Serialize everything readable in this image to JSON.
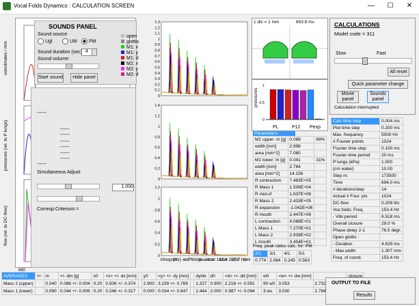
{
  "window": {
    "title": "Vocal Folds Dynamics : CALCULATION SCREEN",
    "minimize": "—",
    "maximize": "☐",
    "close": "✕"
  },
  "left_axes": {
    "ylabel1": "coordinates / mm",
    "ylabel2": "pressures (rel. to P lungs)",
    "ylabel3": "flow (rel. to DC-flow)",
    "tick_680": "680",
    "ticks_top": [
      "3",
      "2",
      "1",
      "0",
      "-1",
      "-2",
      "-3"
    ],
    "ticks_mid": [
      "0.5",
      "0"
    ],
    "ticks_bot": [
      "1",
      "0.5",
      "0"
    ]
  },
  "sounds_panel": {
    "title": "SOUNDS PANEL",
    "source_label": "Sound source",
    "opt_ugl": "Ugl",
    "opt_um": "UM",
    "opt_pm": "PM",
    "duration_label": "Sound duration (sec)",
    "duration_value": "4",
    "volume_label": "Sound volume:",
    "start_btn": "Start sound",
    "hide_btn": "Hide panel"
  },
  "overlay": {
    "dashes": [
      "------",
      "------",
      "------",
      "------",
      "------",
      "------",
      "------",
      "------"
    ],
    "sim_adjust": "Simultaneous Adjust",
    "value": "1.000",
    "corresp": "Corresp.Criterium ="
  },
  "legend": {
    "items": [
      "open",
      "glottis",
      "M1: x",
      "M1: y",
      "M1: d",
      "M2: x",
      "M2: y",
      "M2: d"
    ],
    "colors": [
      "#bbbbbb",
      "#888888",
      "#22cc22",
      "#2222cc",
      "#cc2222",
      "#000000",
      "#ff22ff",
      "#cc2288"
    ]
  },
  "spectra": {
    "y1_ticks": [
      "1.3",
      "1.2",
      "1.1",
      "1",
      "0.9",
      "0.8",
      "0.7",
      "0.6",
      "0.5",
      "0.4",
      "0.3",
      "0.2",
      "0.1",
      "0"
    ],
    "y2_ticks": [
      "1.4",
      "1.2",
      "1",
      "0.8",
      "0.6",
      "0.4",
      "0.2",
      "0"
    ],
    "y3_ticks": [
      "1.2",
      "1",
      "0.8",
      "0.6",
      "0.4",
      "0.2",
      "0"
    ],
    "x_ticks": [
      "0",
      "200",
      "400",
      "600",
      "800",
      "1000",
      "1200",
      "1400"
    ],
    "footer": "freq. (Hz) --- PM : peaks at 142.4   287.7 Hz"
  },
  "glottis_view": {
    "scale": "1 div = 1 mm",
    "time": "693.8 ms"
  },
  "pressure_bars": {
    "title": "pressures",
    "labels": [
      "PL",
      "P12",
      "Pexp"
    ],
    "ticks": [
      "1",
      "0.5",
      "0"
    ],
    "values": [
      0.88,
      0.88,
      0.87,
      0.86,
      0.85,
      0.87,
      0.02
    ],
    "colors": [
      "#cc0000",
      "#2222cc",
      "#cc2222",
      "#8800cc",
      "#aa22aa",
      "#2288ff",
      "#777777"
    ]
  },
  "parameters": {
    "header": "Parameters:",
    "rows": [
      [
        "M2 upper: m [g]",
        "0.089",
        "69%"
      ],
      [
        "width [mm]",
        "2.998",
        ""
      ],
      [
        "area [mm^2]",
        "7.080",
        ""
      ],
      [
        "M1 lower: m [g]",
        "0.041",
        "31%"
      ],
      [
        "width [mm]",
        "2.784",
        ""
      ],
      [
        "area [mm^2]",
        "14.156",
        ""
      ],
      [
        "R contraction",
        "7.483E+05",
        ""
      ],
      [
        "R Mass 1",
        "1.506E+04",
        ""
      ],
      [
        "R mid-vf",
        "1.637E+06",
        ""
      ],
      [
        "R Mass 2",
        "2.433E+05",
        ""
      ],
      [
        "R expansion",
        "-1.042E+06",
        ""
      ],
      [
        "R mouth",
        "2.447E+06",
        ""
      ],
      [
        "L contraction",
        "4.088E+01",
        ""
      ],
      [
        "L Mass 1",
        "7.270E+01",
        ""
      ],
      [
        "L Mass 2",
        "2.939E+02",
        ""
      ],
      [
        "L mouth",
        "3.454E+01",
        ""
      ]
    ]
  },
  "freq_ratios": {
    "title": "Freq. peak ratios calc. for: PM",
    "headers": [
      "2/1",
      "3/1",
      "4/1",
      "5/1"
    ],
    "values": [
      "0.774",
      "2.064",
      "0.245",
      "0.583"
    ]
  },
  "calculations": {
    "title": "CALCULATIONS",
    "model_code": "Model code = 311",
    "slow": "Slow",
    "fast": "Fast",
    "all_reset": "All reset",
    "quick_param": "Quick parameter change",
    "movie_panel": "Movie panel",
    "sounds_panel": "Sounds panel",
    "status": "Calculation interrupted",
    "slider_fraction": 0.38
  },
  "calc_table": [
    [
      "Calc time step",
      "0.004 ms"
    ],
    [
      "Plot time step",
      "0.200 ms"
    ],
    [
      "Max. frequency",
      "5000 Hz"
    ],
    [
      "# Fourier points",
      "1024"
    ],
    [
      "Fourier time step",
      "0.100 ms"
    ],
    [
      "Fourier time period",
      "20 ms"
    ],
    [
      "P lungs  (kPa)",
      "1.000"
    ],
    [
      "   (cm water)",
      "10.00"
    ],
    [
      "Step nr.",
      "173500"
    ],
    [
      "Time",
      "694.0 ms"
    ],
    [
      "# iterations/step",
      "14"
    ],
    [
      "Actual # Four. pts",
      "1024"
    ],
    [
      "DC-flow",
      "0.208 lt/s"
    ],
    [
      "Voc.folds: Freq.",
      "153.4 Hz"
    ],
    [
      " - Vibr.period",
      "6.518 ms"
    ],
    [
      "Overall closure",
      "29.0 %"
    ],
    [
      "Phase delay 2-1",
      "76.5 degr."
    ],
    [
      "Open glottis :",
      ""
    ],
    [
      " - Duration",
      "4.629 ms"
    ],
    [
      " - Max.width",
      "1.307 mm"
    ],
    [
      "Freq. of coord.",
      "153.4 Hz"
    ]
  ],
  "averages": {
    "headers": [
      "AVERAGES",
      "+/-",
      "m",
      "+/- dm [g]",
      "x0",
      "<x> +/- dx [mm]",
      "",
      "y0",
      "<y> +/- dy [mm]",
      "",
      "dy/dx",
      "d0",
      "<d> +/- dd [mm]",
      "",
      "w0",
      "<w> +/- dw [mm]",
      "",
      "closure"
    ],
    "rows": [
      [
        "Mass 2 (upper)",
        "",
        "0.040",
        "0.086 +/- 0.004",
        "0.20",
        "0.506 +/- 0.374",
        "",
        "2.900",
        "3.239 +/- 0.769",
        "",
        "1.327",
        "0.900",
        "2.218 +/- 0.591",
        "",
        "90 w0",
        "3.053",
        "2.732 +/- 0.507",
        "16.8 %"
      ],
      [
        "Mass 1 (lower)",
        "",
        "0.090",
        "0.044 +/- 0.006",
        "0.20",
        "0.246 +/- 0.317",
        "",
        "0.000",
        "0.034 +/- 0.647",
        "",
        "2.444",
        "2.000",
        "0.987 +/- 0.094",
        "",
        "3.ws",
        "3.030",
        "2.784 +/- 0.301",
        "13.9 %"
      ]
    ]
  },
  "output": {
    "title": "OUTPUT TO FILE",
    "results": "Results"
  }
}
